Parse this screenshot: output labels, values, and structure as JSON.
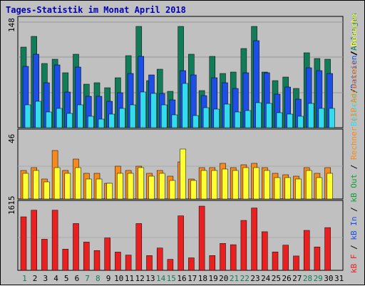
{
  "chart_data": {
    "type": "bar",
    "title": "Tages-Statistik im Monat April 2018",
    "categories": [
      "1",
      "2",
      "3",
      "4",
      "5",
      "6",
      "7",
      "8",
      "9",
      "10",
      "11",
      "12",
      "13",
      "14",
      "15",
      "16",
      "17",
      "18",
      "19",
      "20",
      "21",
      "22",
      "23",
      "24",
      "25",
      "26",
      "27",
      "28",
      "29",
      "30",
      "31"
    ],
    "weekend_days": [
      "1",
      "7",
      "8",
      "14",
      "15",
      "21",
      "22",
      "28",
      "29"
    ],
    "panels": [
      {
        "id": "top",
        "ymax_label": "148",
        "ymax": 148,
        "series": [
          {
            "name": "Anfragen",
            "color": "#127c58",
            "values": [
              113,
              128,
              90,
              96,
              77,
              103,
              61,
              63,
              56,
              70,
              101,
              142,
              66,
              82,
              51,
              142,
              103,
              52,
              100,
              76,
              78,
              111,
              142,
              78,
              66,
              71,
              55,
              105,
              97,
              96,
              null
            ]
          },
          {
            "name": "Dateien",
            "color": "#1d4ee6",
            "values": [
              86,
              103,
              63,
              88,
              50,
              85,
              44,
              44,
              37,
              49,
              76,
              100,
              74,
              48,
              39,
              80,
              74,
              45,
              70,
              63,
              55,
              77,
              122,
              77,
              47,
              57,
              40,
              84,
              80,
              76,
              null
            ]
          },
          {
            "name": "Besuche",
            "color": "#33dcec",
            "values": [
              32,
              37,
              22,
              27,
              20,
              32,
              16,
              12,
              19,
              27,
              32,
              50,
              48,
              32,
              18,
              62,
              17,
              28,
              26,
              33,
              22,
              24,
              35,
              34,
              21,
              19,
              16,
              34,
              27,
              27,
              null
            ]
          }
        ]
      },
      {
        "id": "middle",
        "ymax_label": "46",
        "ymax": 46,
        "series": [
          {
            "name": "Rechner (IP-Adressen)",
            "color": "#f88a1c",
            "values": [
              20,
              22,
              14,
              34,
              20,
              28,
              18,
              18,
              11,
              23,
              20,
              23,
              18,
              20,
              16,
              26,
              14,
              22,
              22,
              25,
              22,
              24,
              25,
              22,
              18,
              17,
              16,
              22,
              18,
              22,
              null
            ]
          },
          {
            "name": "Besuche",
            "color": "#ffff32",
            "values": [
              18,
              20,
              12,
              22,
              18,
              22,
              14,
              14,
              11,
              18,
              18,
              22,
              16,
              18,
              13,
              35,
              13,
              20,
              20,
              21,
              20,
              22,
              22,
              20,
              15,
              15,
              14,
              20,
              15,
              18,
              null
            ]
          }
        ]
      },
      {
        "id": "bottom",
        "ymax_label": "1615",
        "ymax": 1615,
        "series": [
          {
            "name": "kB F",
            "color": "#ea2020",
            "values": [
              1316,
              1480,
              766,
              1480,
              522,
              1151,
              696,
              487,
              797,
              450,
              375,
              1151,
              363,
              549,
              270,
              1341,
              308,
              1580,
              363,
              662,
              630,
              1229,
              1534,
              949,
              453,
              619,
              353,
              983,
              576,
              1051,
              null
            ]
          }
        ]
      }
    ],
    "right_legends": [
      {
        "label": "Anfragen",
        "color": "#127c58"
      },
      {
        "label": "Dateien",
        "color": "#1d4ee6"
      },
      {
        "label": "Besuche",
        "color": "#33dcec"
      },
      {
        "label": "Rechner (IP-Adressen)",
        "color": "#f88a1c"
      },
      {
        "label": "Besuche",
        "color": "#ffff32"
      },
      {
        "label": "kB Out",
        "color": "#12a032"
      },
      {
        "label": "kB In",
        "color": "#1d4ee6"
      },
      {
        "label": "kB F",
        "color": "#ea2020"
      }
    ],
    "colors": {
      "background": "#c0c0c0",
      "panel": "#c0c0c0",
      "title": "#0000b4",
      "weekend": "#127c58",
      "weekday": "#000000"
    }
  }
}
